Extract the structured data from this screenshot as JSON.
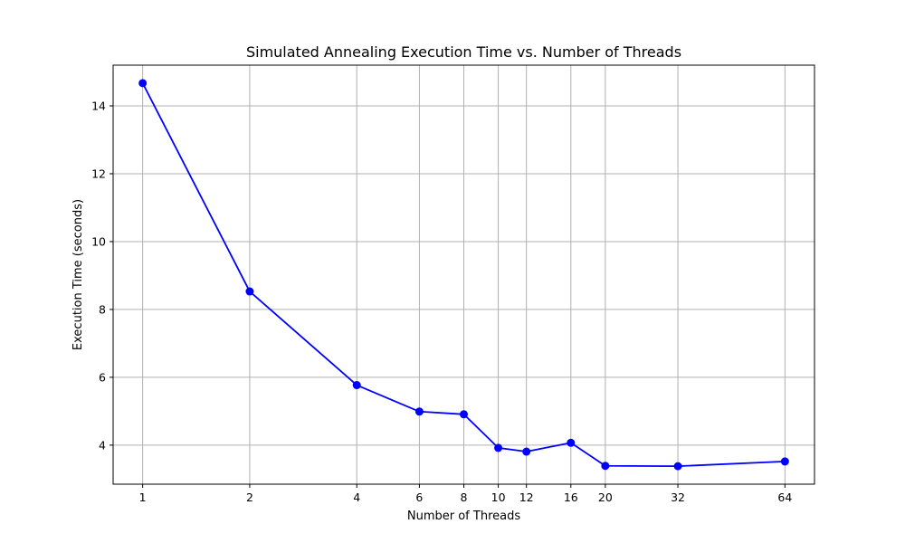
{
  "chart_data": {
    "type": "line",
    "title": "Simulated Annealing Execution Time vs. Number of Threads",
    "xlabel": "Number of Threads",
    "ylabel": "Execution Time (seconds)",
    "x_scale": "log2",
    "x": [
      1,
      2,
      4,
      6,
      8,
      10,
      12,
      16,
      20,
      32,
      64
    ],
    "x_tick_labels": [
      "1",
      "2",
      "4",
      "6",
      "8",
      "10",
      "12",
      "16",
      "20",
      "32",
      "64"
    ],
    "y_ticks": [
      4,
      6,
      8,
      10,
      12,
      14
    ],
    "ylim": [
      2.85,
      15.2
    ],
    "grid": true,
    "series": [
      {
        "values": [
          14.67,
          8.53,
          5.77,
          4.99,
          4.91,
          3.92,
          3.81,
          4.07,
          3.39,
          3.38,
          3.52
        ],
        "color": "#0000ff",
        "marker": "circle"
      }
    ]
  }
}
